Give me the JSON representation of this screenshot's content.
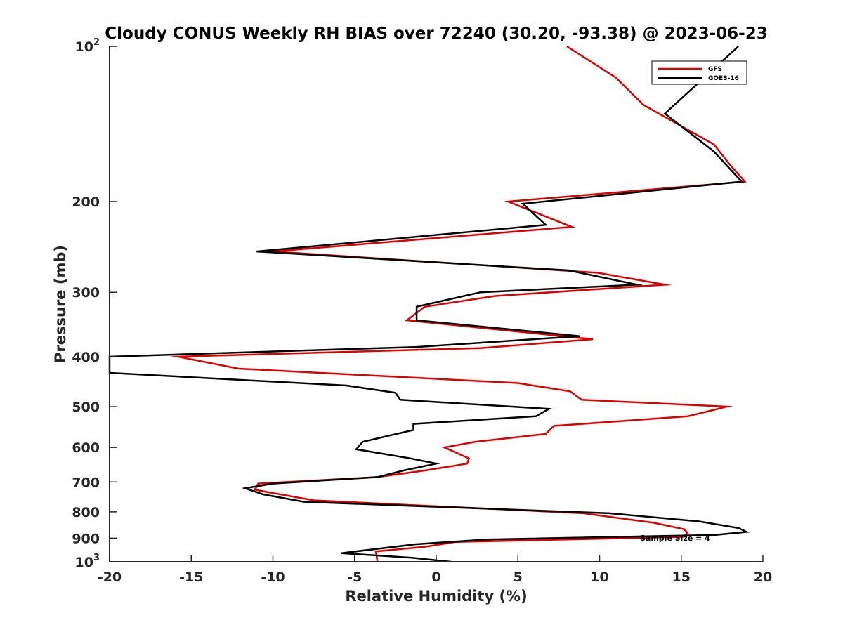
{
  "chart_data": {
    "type": "line",
    "title": "Cloudy CONUS Weekly RH BIAS over 72240 (30.20, -93.38) @ 2023-06-23",
    "xlabel": "Relative Humidity (%)",
    "ylabel": "Pressure (mb)",
    "xlim": [
      -20,
      20
    ],
    "ylim": [
      100,
      1000
    ],
    "yscale": "log",
    "y_reversed": true,
    "grid": false,
    "legend_location": "top-right",
    "x_ticks": [
      -20,
      -15,
      -10,
      -5,
      0,
      5,
      10,
      15,
      20
    ],
    "x_tick_labels": [
      "-20",
      "-15",
      "-10",
      "-5",
      "0",
      "5",
      "10",
      "15",
      "20"
    ],
    "y_ticks": [
      100,
      200,
      300,
      400,
      500,
      600,
      700,
      800,
      900,
      1000
    ],
    "y_tick_labels": [
      {
        "base": "10",
        "exp": "2"
      },
      {
        "base": "200",
        "exp": ""
      },
      {
        "base": "300",
        "exp": ""
      },
      {
        "base": "400",
        "exp": ""
      },
      {
        "base": "500",
        "exp": ""
      },
      {
        "base": "600",
        "exp": ""
      },
      {
        "base": "700",
        "exp": ""
      },
      {
        "base": "800",
        "exp": ""
      },
      {
        "base": "900",
        "exp": ""
      },
      {
        "base": "10",
        "exp": "3"
      }
    ],
    "annotation": "Sample Size = 4",
    "series": [
      {
        "name": "GFS",
        "color": "#e00000",
        "points": [
          [
            8,
            100
          ],
          [
            11,
            115
          ],
          [
            12.7,
            130
          ],
          [
            17,
            155
          ],
          [
            18,
            170
          ],
          [
            18.9,
            183
          ],
          [
            4.4,
            200
          ],
          [
            8.3,
            224
          ],
          [
            -10,
            250
          ],
          [
            9.9,
            275
          ],
          [
            14,
            290
          ],
          [
            3.6,
            305
          ],
          [
            -0.7,
            320
          ],
          [
            -1.8,
            340
          ],
          [
            9.6,
            370
          ],
          [
            2.7,
            385
          ],
          [
            -15.8,
            400
          ],
          [
            -12.1,
            422
          ],
          [
            5,
            450
          ],
          [
            8.2,
            467
          ],
          [
            8.9,
            485
          ],
          [
            17.8,
            500
          ],
          [
            15.4,
            522
          ],
          [
            7.2,
            545
          ],
          [
            6.7,
            565
          ],
          [
            2.4,
            585
          ],
          [
            0.5,
            600
          ],
          [
            2,
            630
          ],
          [
            1.9,
            645
          ],
          [
            -0.7,
            665
          ],
          [
            -3.6,
            685
          ],
          [
            -10.9,
            705
          ],
          [
            -11.1,
            725
          ],
          [
            -7.5,
            760
          ],
          [
            9,
            805
          ],
          [
            13.3,
            840
          ],
          [
            15.2,
            865
          ],
          [
            15.4,
            880
          ],
          [
            15.1,
            895
          ],
          [
            1.2,
            915
          ],
          [
            -0.7,
            935
          ],
          [
            -3.7,
            955
          ],
          [
            -3.6,
            1000
          ]
        ]
      },
      {
        "name": "GOES-16",
        "color": "#000000",
        "points": [
          [
            18.5,
            100
          ],
          [
            14,
            135
          ],
          [
            17,
            160
          ],
          [
            18.7,
            183
          ],
          [
            5.3,
            202
          ],
          [
            6.7,
            222
          ],
          [
            -11,
            250
          ],
          [
            8.1,
            272
          ],
          [
            12.3,
            290
          ],
          [
            2.7,
            300
          ],
          [
            -1.2,
            320
          ],
          [
            -1.2,
            340
          ],
          [
            8.8,
            365
          ],
          [
            -1.2,
            383
          ],
          [
            -20,
            400
          ],
          [
            -20,
            430
          ],
          [
            -5.5,
            455
          ],
          [
            -2.5,
            470
          ],
          [
            -2.2,
            485
          ],
          [
            6.9,
            505
          ],
          [
            6.1,
            522
          ],
          [
            -1.4,
            540
          ],
          [
            -1.4,
            555
          ],
          [
            -4.5,
            585
          ],
          [
            -4.9,
            605
          ],
          [
            -1.6,
            630
          ],
          [
            0,
            645
          ],
          [
            -2,
            665
          ],
          [
            -3.6,
            685
          ],
          [
            -10,
            705
          ],
          [
            -11.7,
            720
          ],
          [
            -10.6,
            740
          ],
          [
            -8.1,
            765
          ],
          [
            10.6,
            805
          ],
          [
            16.1,
            835
          ],
          [
            18.5,
            860
          ],
          [
            19,
            875
          ],
          [
            17.1,
            887
          ],
          [
            3.1,
            905
          ],
          [
            -1.3,
            925
          ],
          [
            -5.8,
            962
          ],
          [
            -1.5,
            982
          ],
          [
            0.9,
            1000
          ]
        ]
      }
    ]
  }
}
